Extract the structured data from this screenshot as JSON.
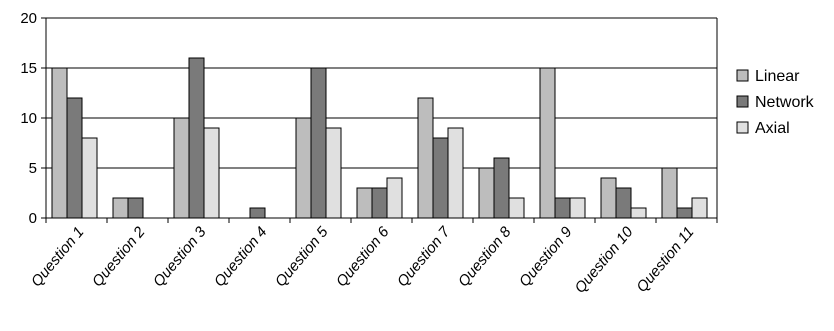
{
  "chart_data": {
    "type": "bar",
    "title": "",
    "xlabel": "",
    "ylabel": "",
    "ylim": [
      0,
      20
    ],
    "yticks": [
      0,
      5,
      10,
      15,
      20
    ],
    "grid": true,
    "legend_position": "right",
    "categories": [
      "Question 1",
      "Question 2",
      "Question 3",
      "Question 4",
      "Question 5",
      "Question 6",
      "Question 7",
      "Question 8",
      "Question 9",
      "Question 10",
      "Question 11"
    ],
    "series": [
      {
        "name": "Linear",
        "color": "#bdbdbd",
        "values": [
          15,
          2,
          10,
          0,
          10,
          3,
          12,
          5,
          15,
          4,
          5
        ]
      },
      {
        "name": "Network",
        "color": "#7a7a7a",
        "values": [
          12,
          2,
          16,
          1,
          15,
          3,
          8,
          6,
          2,
          3,
          1
        ]
      },
      {
        "name": "Axial",
        "color": "#e0e0e0",
        "values": [
          8,
          0,
          9,
          0,
          9,
          4,
          9,
          2,
          2,
          1,
          2
        ]
      }
    ]
  }
}
